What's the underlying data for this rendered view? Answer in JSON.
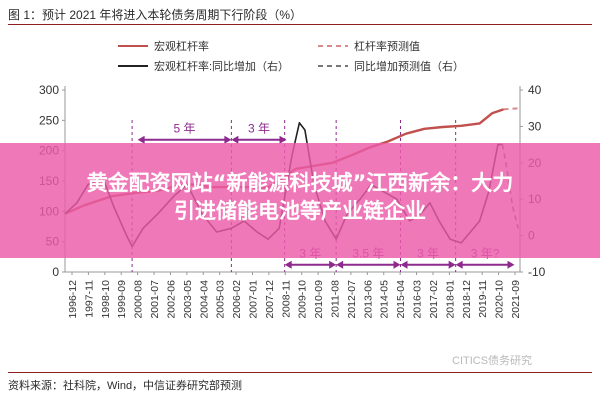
{
  "figure": {
    "title": "图 1：预计 2021 年将进入本轮债务周期下行阶段（%）",
    "source": "资料来源：社科院，Wind，中信证券研究部预测",
    "watermark": "CITICS债务研究"
  },
  "overlay": {
    "headline_line1": "黄金配资网站“新能源科技城”江西新余：大力",
    "headline_line2": "引进储能电池等产业链企业"
  },
  "colors": {
    "leverage": "#c0504d",
    "yoy": "#222222",
    "forecast_leverage": "#d98a8a",
    "forecast_yoy": "#777777",
    "cycle_span": "#8e2a8e",
    "axis": "#999999",
    "title_rule": "#8c1f1f",
    "banner": "#ec5ca8"
  },
  "chart_data": {
    "type": "line",
    "legend_position": "top",
    "grid": false,
    "x_ticks": [
      "1996-12",
      "1997-11",
      "1998-10",
      "1999-09",
      "2000-08",
      "2001-07",
      "2002-06",
      "2003-05",
      "2004-04",
      "2005-03",
      "2006-02",
      "2007-01",
      "2007-12",
      "2008-11",
      "2009-10",
      "2010-09",
      "2011-08",
      "2012-07",
      "2013-06",
      "2014-05",
      "2015-04",
      "2016-03",
      "2017-02",
      "2018-01",
      "2018-12",
      "2019-11",
      "2020-10",
      "2021-09"
    ],
    "left_axis": {
      "min": 0,
      "max": 300,
      "ticks": [
        0,
        50,
        100,
        150,
        200,
        250,
        300
      ]
    },
    "right_axis": {
      "min": -10,
      "max": 40,
      "ticks": [
        -10,
        0,
        10,
        20,
        30,
        40
      ]
    },
    "series": [
      {
        "name": "宏观杠杆率",
        "axis": "left",
        "style": "solid",
        "points": [
          [
            1996.95,
            96
          ],
          [
            1998,
            110
          ],
          [
            1999.5,
            125
          ],
          [
            2000.7,
            130
          ],
          [
            2002,
            134
          ],
          [
            2003.5,
            145
          ],
          [
            2005,
            140
          ],
          [
            2006.5,
            140
          ],
          [
            2008,
            139
          ],
          [
            2009.5,
            170
          ],
          [
            2010.5,
            175
          ],
          [
            2011.5,
            180
          ],
          [
            2012.5,
            192
          ],
          [
            2013.5,
            205
          ],
          [
            2014.5,
            215
          ],
          [
            2015.5,
            228
          ],
          [
            2016.5,
            236
          ],
          [
            2017.5,
            239
          ],
          [
            2018.5,
            241
          ],
          [
            2019.5,
            245
          ],
          [
            2020.2,
            262
          ],
          [
            2020.8,
            268
          ]
        ]
      },
      {
        "name": "杠杆率预测值",
        "axis": "left",
        "style": "dashed",
        "points": [
          [
            2020.8,
            268
          ],
          [
            2021.2,
            269
          ],
          [
            2021.7,
            270
          ]
        ]
      },
      {
        "name": "宏观杠杆率:同比增加（右）",
        "axis": "right",
        "style": "solid",
        "points": [
          [
            1996.95,
            6
          ],
          [
            1997.6,
            9
          ],
          [
            1998.2,
            14
          ],
          [
            1999,
            16
          ],
          [
            1999.6,
            8
          ],
          [
            2000.3,
            0
          ],
          [
            2000.6,
            -3
          ],
          [
            2001.2,
            2
          ],
          [
            2002,
            6
          ],
          [
            2002.9,
            11
          ],
          [
            2003.6,
            14
          ],
          [
            2004.4,
            6
          ],
          [
            2005.2,
            1
          ],
          [
            2006,
            2
          ],
          [
            2006.7,
            4
          ],
          [
            2007.4,
            1
          ],
          [
            2008,
            -1
          ],
          [
            2008.6,
            2
          ],
          [
            2009.3,
            22
          ],
          [
            2009.7,
            31
          ],
          [
            2010,
            29
          ],
          [
            2010.5,
            14
          ],
          [
            2011.1,
            4
          ],
          [
            2011.7,
            -1
          ],
          [
            2012.3,
            6
          ],
          [
            2013,
            10
          ],
          [
            2013.6,
            14
          ],
          [
            2014.3,
            12
          ],
          [
            2015,
            10
          ],
          [
            2015.7,
            4
          ],
          [
            2016.3,
            6
          ],
          [
            2016.8,
            9
          ],
          [
            2017.3,
            4
          ],
          [
            2017.9,
            -1
          ],
          [
            2018.5,
            -2
          ],
          [
            2019,
            1
          ],
          [
            2019.5,
            4
          ],
          [
            2020,
            12
          ],
          [
            2020.5,
            25
          ],
          [
            2020.75,
            25
          ]
        ]
      },
      {
        "name": "同比增加预测值（右）",
        "axis": "right",
        "style": "dashed",
        "points": [
          [
            2020.75,
            25
          ],
          [
            2021,
            18
          ],
          [
            2021.3,
            8
          ],
          [
            2021.6,
            2
          ]
        ]
      }
    ],
    "annotations": [
      {
        "label": "5 年",
        "from": 2000.9,
        "to": 2006.0,
        "y_left": 218
      },
      {
        "label": "3 年",
        "from": 2006.0,
        "to": 2009.0,
        "y_left": 218
      },
      {
        "label": "3 年",
        "from": 2008.9,
        "to": 2011.7,
        "y_left": 12
      },
      {
        "label": "3.5 年",
        "from": 2011.7,
        "to": 2015.2,
        "y_left": 12
      },
      {
        "label": "3 年",
        "from": 2015.2,
        "to": 2018.2,
        "y_left": 12
      },
      {
        "label": "3 年?",
        "from": 2018.2,
        "to": 2021.4,
        "y_left": 12
      }
    ],
    "cycle_markers": [
      2000.6,
      2006.0,
      2008.9,
      2011.7,
      2015.2,
      2018.2
    ]
  }
}
